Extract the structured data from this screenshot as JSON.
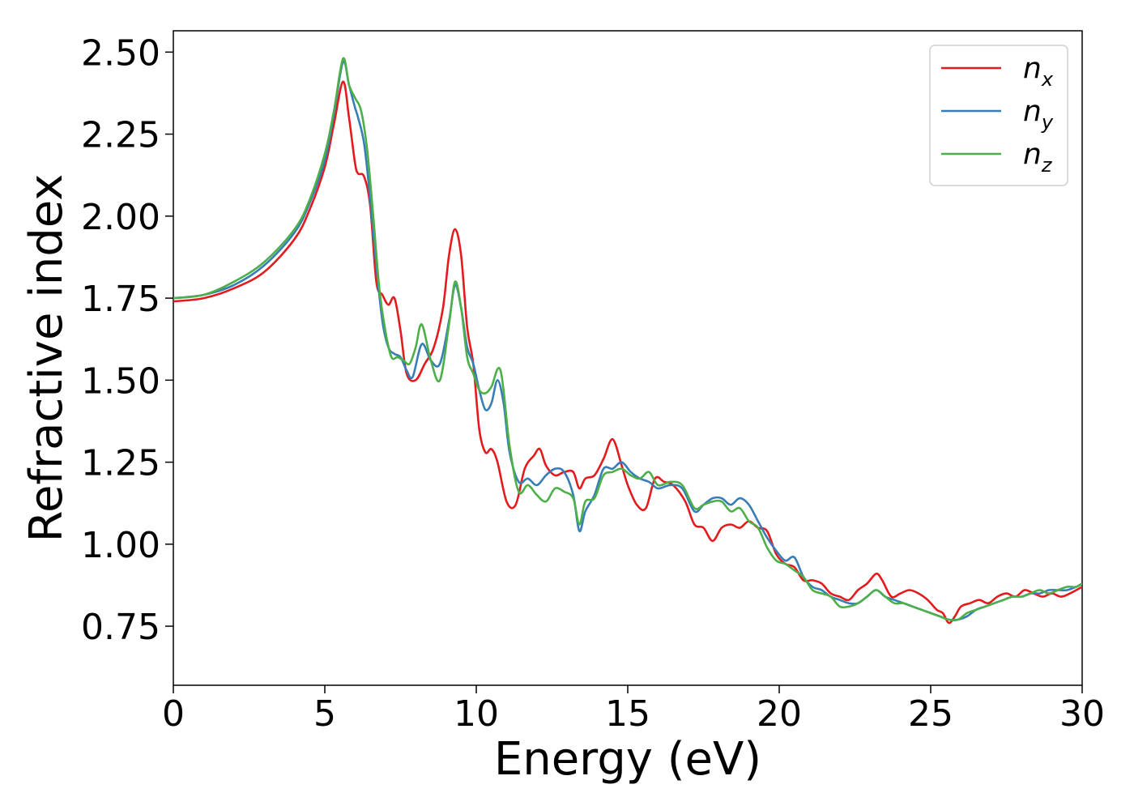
{
  "chart_data": {
    "type": "line",
    "xlabel": "Energy (eV)",
    "ylabel": "Refractive index",
    "xlim": [
      0,
      30
    ],
    "ylim": [
      0.57,
      2.565
    ],
    "xticks": [
      0,
      5,
      10,
      15,
      20,
      25,
      30
    ],
    "xtick_labels": [
      "0",
      "5",
      "10",
      "15",
      "20",
      "25",
      "30"
    ],
    "yticks": [
      0.75,
      1.0,
      1.25,
      1.5,
      1.75,
      2.0,
      2.25,
      2.5
    ],
    "ytick_labels": [
      "0.75",
      "1.00",
      "1.25",
      "1.50",
      "1.75",
      "2.00",
      "2.25",
      "2.50"
    ],
    "grid": false,
    "legend_position": "top-right",
    "series": [
      {
        "name": "n",
        "subscript": "x",
        "color": "#e41a1c",
        "x": [
          0,
          1,
          2,
          3,
          4,
          4.5,
          5,
          5.3,
          5.6,
          5.8,
          6,
          6.1,
          6.3,
          6.5,
          6.7,
          6.9,
          7.1,
          7.3,
          7.5,
          7.7,
          8,
          8.3,
          8.6,
          8.9,
          9.1,
          9.3,
          9.5,
          9.7,
          9.9,
          10.1,
          10.3,
          10.5,
          10.7,
          11,
          11.3,
          11.6,
          11.9,
          12.1,
          12.3,
          12.6,
          12.9,
          13.2,
          13.4,
          13.6,
          13.9,
          14.2,
          14.5,
          14.8,
          15,
          15.3,
          15.6,
          15.9,
          16.2,
          16.5,
          16.9,
          17.2,
          17.5,
          17.8,
          18.1,
          18.4,
          18.7,
          19,
          19.3,
          19.6,
          19.9,
          20.2,
          20.5,
          20.8,
          21.1,
          21.4,
          21.7,
          22,
          22.3,
          22.6,
          22.9,
          23.2,
          23.4,
          23.7,
          24,
          24.3,
          24.6,
          24.9,
          25.2,
          25.4,
          25.6,
          25.8,
          26,
          26.3,
          26.6,
          26.9,
          27.2,
          27.5,
          27.8,
          28.1,
          28.4,
          28.7,
          29,
          29.3,
          29.6,
          30
        ],
        "y": [
          1.74,
          1.75,
          1.78,
          1.83,
          1.93,
          2.02,
          2.15,
          2.28,
          2.41,
          2.3,
          2.16,
          2.13,
          2.12,
          2.03,
          1.8,
          1.76,
          1.73,
          1.75,
          1.65,
          1.52,
          1.5,
          1.55,
          1.6,
          1.72,
          1.88,
          1.96,
          1.88,
          1.66,
          1.55,
          1.35,
          1.28,
          1.29,
          1.25,
          1.13,
          1.12,
          1.23,
          1.27,
          1.29,
          1.24,
          1.21,
          1.22,
          1.22,
          1.17,
          1.2,
          1.21,
          1.26,
          1.32,
          1.24,
          1.18,
          1.12,
          1.11,
          1.2,
          1.19,
          1.18,
          1.13,
          1.06,
          1.05,
          1.01,
          1.05,
          1.06,
          1.05,
          1.07,
          1.05,
          1.04,
          0.97,
          0.94,
          0.93,
          0.89,
          0.89,
          0.88,
          0.85,
          0.84,
          0.83,
          0.86,
          0.88,
          0.91,
          0.89,
          0.84,
          0.85,
          0.86,
          0.85,
          0.83,
          0.8,
          0.79,
          0.76,
          0.78,
          0.81,
          0.82,
          0.83,
          0.82,
          0.84,
          0.85,
          0.84,
          0.86,
          0.85,
          0.84,
          0.85,
          0.84,
          0.85,
          0.87
        ]
      },
      {
        "name": "n",
        "subscript": "y",
        "color": "#377eb8",
        "x": [
          0,
          1,
          2,
          3,
          4,
          4.5,
          5,
          5.3,
          5.6,
          5.8,
          6,
          6.1,
          6.3,
          6.5,
          6.7,
          6.9,
          7.1,
          7.3,
          7.5,
          7.7,
          7.9,
          8.2,
          8.5,
          8.8,
          9.1,
          9.3,
          9.5,
          9.7,
          9.9,
          10.1,
          10.3,
          10.5,
          10.7,
          10.9,
          11.1,
          11.4,
          11.7,
          12,
          12.3,
          12.6,
          12.9,
          13.2,
          13.4,
          13.6,
          13.9,
          14.2,
          14.5,
          14.8,
          15.1,
          15.4,
          15.7,
          16,
          16.4,
          16.8,
          17.2,
          17.5,
          17.8,
          18.1,
          18.4,
          18.7,
          19,
          19.3,
          19.6,
          19.9,
          20.2,
          20.5,
          20.8,
          21.1,
          21.4,
          21.7,
          22,
          22.3,
          22.6,
          22.9,
          23.2,
          23.5,
          23.8,
          24.1,
          24.4,
          24.7,
          25,
          25.3,
          25.6,
          25.9,
          26.2,
          26.5,
          26.8,
          27.1,
          27.4,
          27.7,
          28,
          28.3,
          28.6,
          28.9,
          29.2,
          29.5,
          29.8,
          30
        ],
        "y": [
          1.75,
          1.76,
          1.79,
          1.85,
          1.95,
          2.04,
          2.17,
          2.31,
          2.47,
          2.4,
          2.33,
          2.3,
          2.22,
          2.05,
          1.85,
          1.68,
          1.6,
          1.58,
          1.57,
          1.53,
          1.51,
          1.61,
          1.56,
          1.55,
          1.68,
          1.79,
          1.72,
          1.6,
          1.55,
          1.47,
          1.41,
          1.43,
          1.5,
          1.43,
          1.28,
          1.19,
          1.2,
          1.18,
          1.21,
          1.23,
          1.22,
          1.15,
          1.04,
          1.1,
          1.15,
          1.23,
          1.23,
          1.25,
          1.22,
          1.2,
          1.19,
          1.17,
          1.18,
          1.17,
          1.1,
          1.12,
          1.14,
          1.14,
          1.12,
          1.14,
          1.12,
          1.07,
          1.02,
          0.98,
          0.95,
          0.96,
          0.9,
          0.87,
          0.86,
          0.84,
          0.83,
          0.82,
          0.82,
          0.84,
          0.86,
          0.84,
          0.83,
          0.82,
          0.81,
          0.8,
          0.79,
          0.78,
          0.77,
          0.77,
          0.78,
          0.8,
          0.81,
          0.82,
          0.83,
          0.84,
          0.84,
          0.85,
          0.85,
          0.86,
          0.86,
          0.86,
          0.87,
          0.88
        ]
      },
      {
        "name": "n",
        "subscript": "z",
        "color": "#4daf4a",
        "x": [
          0,
          1,
          2,
          3,
          4,
          4.5,
          5,
          5.3,
          5.6,
          5.8,
          6,
          6.2,
          6.4,
          6.6,
          6.8,
          7,
          7.2,
          7.4,
          7.6,
          7.8,
          8,
          8.2,
          8.5,
          8.8,
          9.1,
          9.3,
          9.5,
          9.7,
          9.9,
          10.1,
          10.3,
          10.5,
          10.8,
          11.1,
          11.4,
          11.7,
          12,
          12.3,
          12.6,
          12.9,
          13.2,
          13.4,
          13.6,
          13.9,
          14.2,
          14.5,
          14.8,
          15.1,
          15.4,
          15.7,
          16,
          16.4,
          16.8,
          17.2,
          17.5,
          17.8,
          18.1,
          18.4,
          18.7,
          19,
          19.3,
          19.6,
          19.9,
          20.2,
          20.5,
          20.8,
          21.1,
          21.4,
          21.7,
          22,
          22.3,
          22.6,
          22.9,
          23.2,
          23.5,
          23.8,
          24.1,
          24.4,
          24.7,
          25,
          25.3,
          25.6,
          25.9,
          26.2,
          26.5,
          26.8,
          27.1,
          27.4,
          27.7,
          28,
          28.3,
          28.6,
          28.9,
          29.2,
          29.5,
          29.8,
          30
        ],
        "y": [
          1.75,
          1.76,
          1.8,
          1.86,
          1.96,
          2.05,
          2.19,
          2.32,
          2.48,
          2.4,
          2.36,
          2.32,
          2.2,
          2.0,
          1.78,
          1.65,
          1.57,
          1.57,
          1.56,
          1.55,
          1.6,
          1.67,
          1.56,
          1.5,
          1.67,
          1.8,
          1.72,
          1.57,
          1.52,
          1.47,
          1.46,
          1.48,
          1.53,
          1.3,
          1.16,
          1.18,
          1.15,
          1.13,
          1.17,
          1.16,
          1.14,
          1.06,
          1.13,
          1.14,
          1.21,
          1.22,
          1.23,
          1.21,
          1.2,
          1.22,
          1.18,
          1.19,
          1.18,
          1.11,
          1.12,
          1.13,
          1.13,
          1.1,
          1.11,
          1.07,
          1.05,
          0.99,
          0.95,
          0.94,
          0.92,
          0.9,
          0.86,
          0.85,
          0.84,
          0.81,
          0.81,
          0.82,
          0.84,
          0.86,
          0.84,
          0.82,
          0.82,
          0.81,
          0.8,
          0.79,
          0.78,
          0.77,
          0.77,
          0.79,
          0.8,
          0.81,
          0.82,
          0.83,
          0.84,
          0.84,
          0.85,
          0.86,
          0.85,
          0.86,
          0.87,
          0.87,
          0.88
        ]
      }
    ]
  }
}
